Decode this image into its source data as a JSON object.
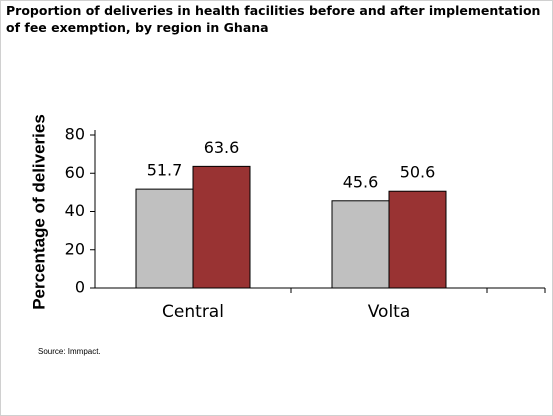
{
  "chart_data": {
    "type": "bar",
    "title": "Proportion of deliveries in health facilities before and after implementation of fee exemption, by region in Ghana",
    "ylabel": "Percentage of deliveries",
    "categories": [
      "Central",
      "Volta"
    ],
    "series": [
      {
        "color": "#c0c0c0",
        "values": [
          51.7,
          45.6
        ]
      },
      {
        "color": "#993333",
        "values": [
          63.6,
          50.6
        ]
      }
    ],
    "ylim": [
      0,
      80
    ],
    "yticks": [
      0,
      20,
      40,
      60,
      80
    ],
    "source": "Source: Immpact."
  }
}
